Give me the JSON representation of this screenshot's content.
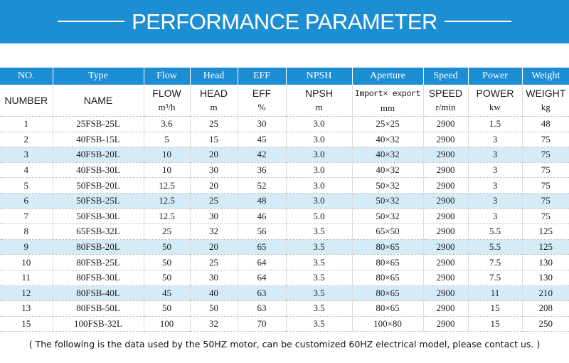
{
  "banner": {
    "title": "PERFORMANCE PARAMETER"
  },
  "table": {
    "type_row": [
      "NO.",
      "Type",
      "Flow",
      "Head",
      "EFF",
      "NPSH",
      "Aperture",
      "Speed",
      "Power",
      "Weight"
    ],
    "name_row": [
      "NUMBER",
      "NAME",
      "FLOW",
      "HEAD",
      "EFF",
      "NPSH",
      "Import× export",
      "SPEED",
      "POWER",
      "WEIGHT"
    ],
    "unit_row": [
      "",
      "",
      "m³/h",
      "m",
      "%",
      "m",
      "mm",
      "r/min",
      "kw",
      "kg"
    ],
    "rows": [
      [
        "1",
        "25FSB-25L",
        "3.6",
        "25",
        "30",
        "3.0",
        "25×25",
        "2900",
        "1.5",
        "48"
      ],
      [
        "2",
        "40FSB-15L",
        "5",
        "15",
        "45",
        "3.0",
        "40×32",
        "2900",
        "3",
        "75"
      ],
      [
        "3",
        "40FSB-20L",
        "10",
        "20",
        "42",
        "3.0",
        "40×32",
        "2900",
        "3",
        "75"
      ],
      [
        "4",
        "40FSB-30L",
        "10",
        "30",
        "36",
        "3.0",
        "40×32",
        "2900",
        "3",
        "75"
      ],
      [
        "5",
        "50FSB-20L",
        "12.5",
        "20",
        "52",
        "3.0",
        "50×32",
        "2900",
        "3",
        "75"
      ],
      [
        "6",
        "50FSB-25L",
        "12.5",
        "25",
        "48",
        "3.0",
        "50×32",
        "2900",
        "3",
        "75"
      ],
      [
        "7",
        "50FSB-30L",
        "12.5",
        "30",
        "46",
        "5.0",
        "50×32",
        "2900",
        "3",
        "75"
      ],
      [
        "8",
        "65FSB-32L",
        "25",
        "32",
        "56",
        "3.5",
        "65×50",
        "2900",
        "5.5",
        "125"
      ],
      [
        "9",
        "80FSB-20L",
        "50",
        "20",
        "65",
        "3.5",
        "80×65",
        "2900",
        "5.5",
        "125"
      ],
      [
        "10",
        "80FSB-25L",
        "50",
        "25",
        "64",
        "3.5",
        "80×65",
        "2900",
        "7.5",
        "130"
      ],
      [
        "11",
        "80FSB-30L",
        "50",
        "30",
        "64",
        "3.5",
        "80×65",
        "2900",
        "7.5",
        "130"
      ],
      [
        "12",
        "80FSB-40L",
        "45",
        "40",
        "63",
        "3.5",
        "80×65",
        "2900",
        "11",
        "210"
      ],
      [
        "13",
        "80FSB-50L",
        "50",
        "50",
        "63",
        "3.5",
        "80×65",
        "2900",
        "15",
        "208"
      ],
      [
        "15",
        "100FSB-32L",
        "100",
        "32",
        "70",
        "3.5",
        "100×80",
        "2900",
        "15",
        "250"
      ]
    ],
    "highlighted_rows": [
      3,
      6,
      9,
      12
    ],
    "colors": {
      "header_bg": "#1d8ed2",
      "highlight_bg": "#d6ebf8"
    }
  },
  "footnote": "( The following is the data used by the 50HZ motor, can be customized 60HZ electrical model, please contact us. )"
}
